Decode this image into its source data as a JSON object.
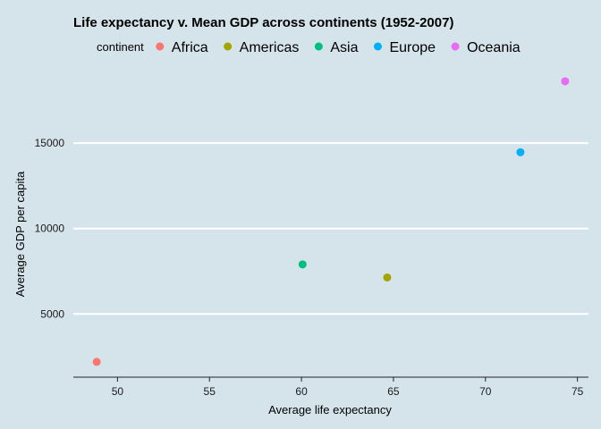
{
  "chart_data": {
    "type": "scatter",
    "title": "Life expectancy v. Mean GDP across continents (1952-2007)",
    "xlabel": "Average life expectancy",
    "ylabel": "Average GDP per capita",
    "xlim": [
      47.6,
      75.6
    ],
    "ylim": [
      1300,
      19300
    ],
    "x_ticks": [
      50,
      55,
      60,
      65,
      70,
      75
    ],
    "y_ticks": [
      5000,
      10000,
      15000
    ],
    "grid": "horizontal-major",
    "legend": {
      "title": "continent",
      "position": "top"
    },
    "series": [
      {
        "name": "Africa",
        "color": "#f8766d",
        "points": [
          {
            "x": 48.87,
            "y": 2194
          }
        ]
      },
      {
        "name": "Americas",
        "color": "#a3a500",
        "points": [
          {
            "x": 64.66,
            "y": 7136
          }
        ]
      },
      {
        "name": "Asia",
        "color": "#00bf7d",
        "points": [
          {
            "x": 60.06,
            "y": 7902
          }
        ]
      },
      {
        "name": "Europe",
        "color": "#00b0f6",
        "points": [
          {
            "x": 71.9,
            "y": 14469
          }
        ]
      },
      {
        "name": "Oceania",
        "color": "#e76bf3",
        "points": [
          {
            "x": 74.33,
            "y": 18622
          }
        ]
      }
    ]
  }
}
